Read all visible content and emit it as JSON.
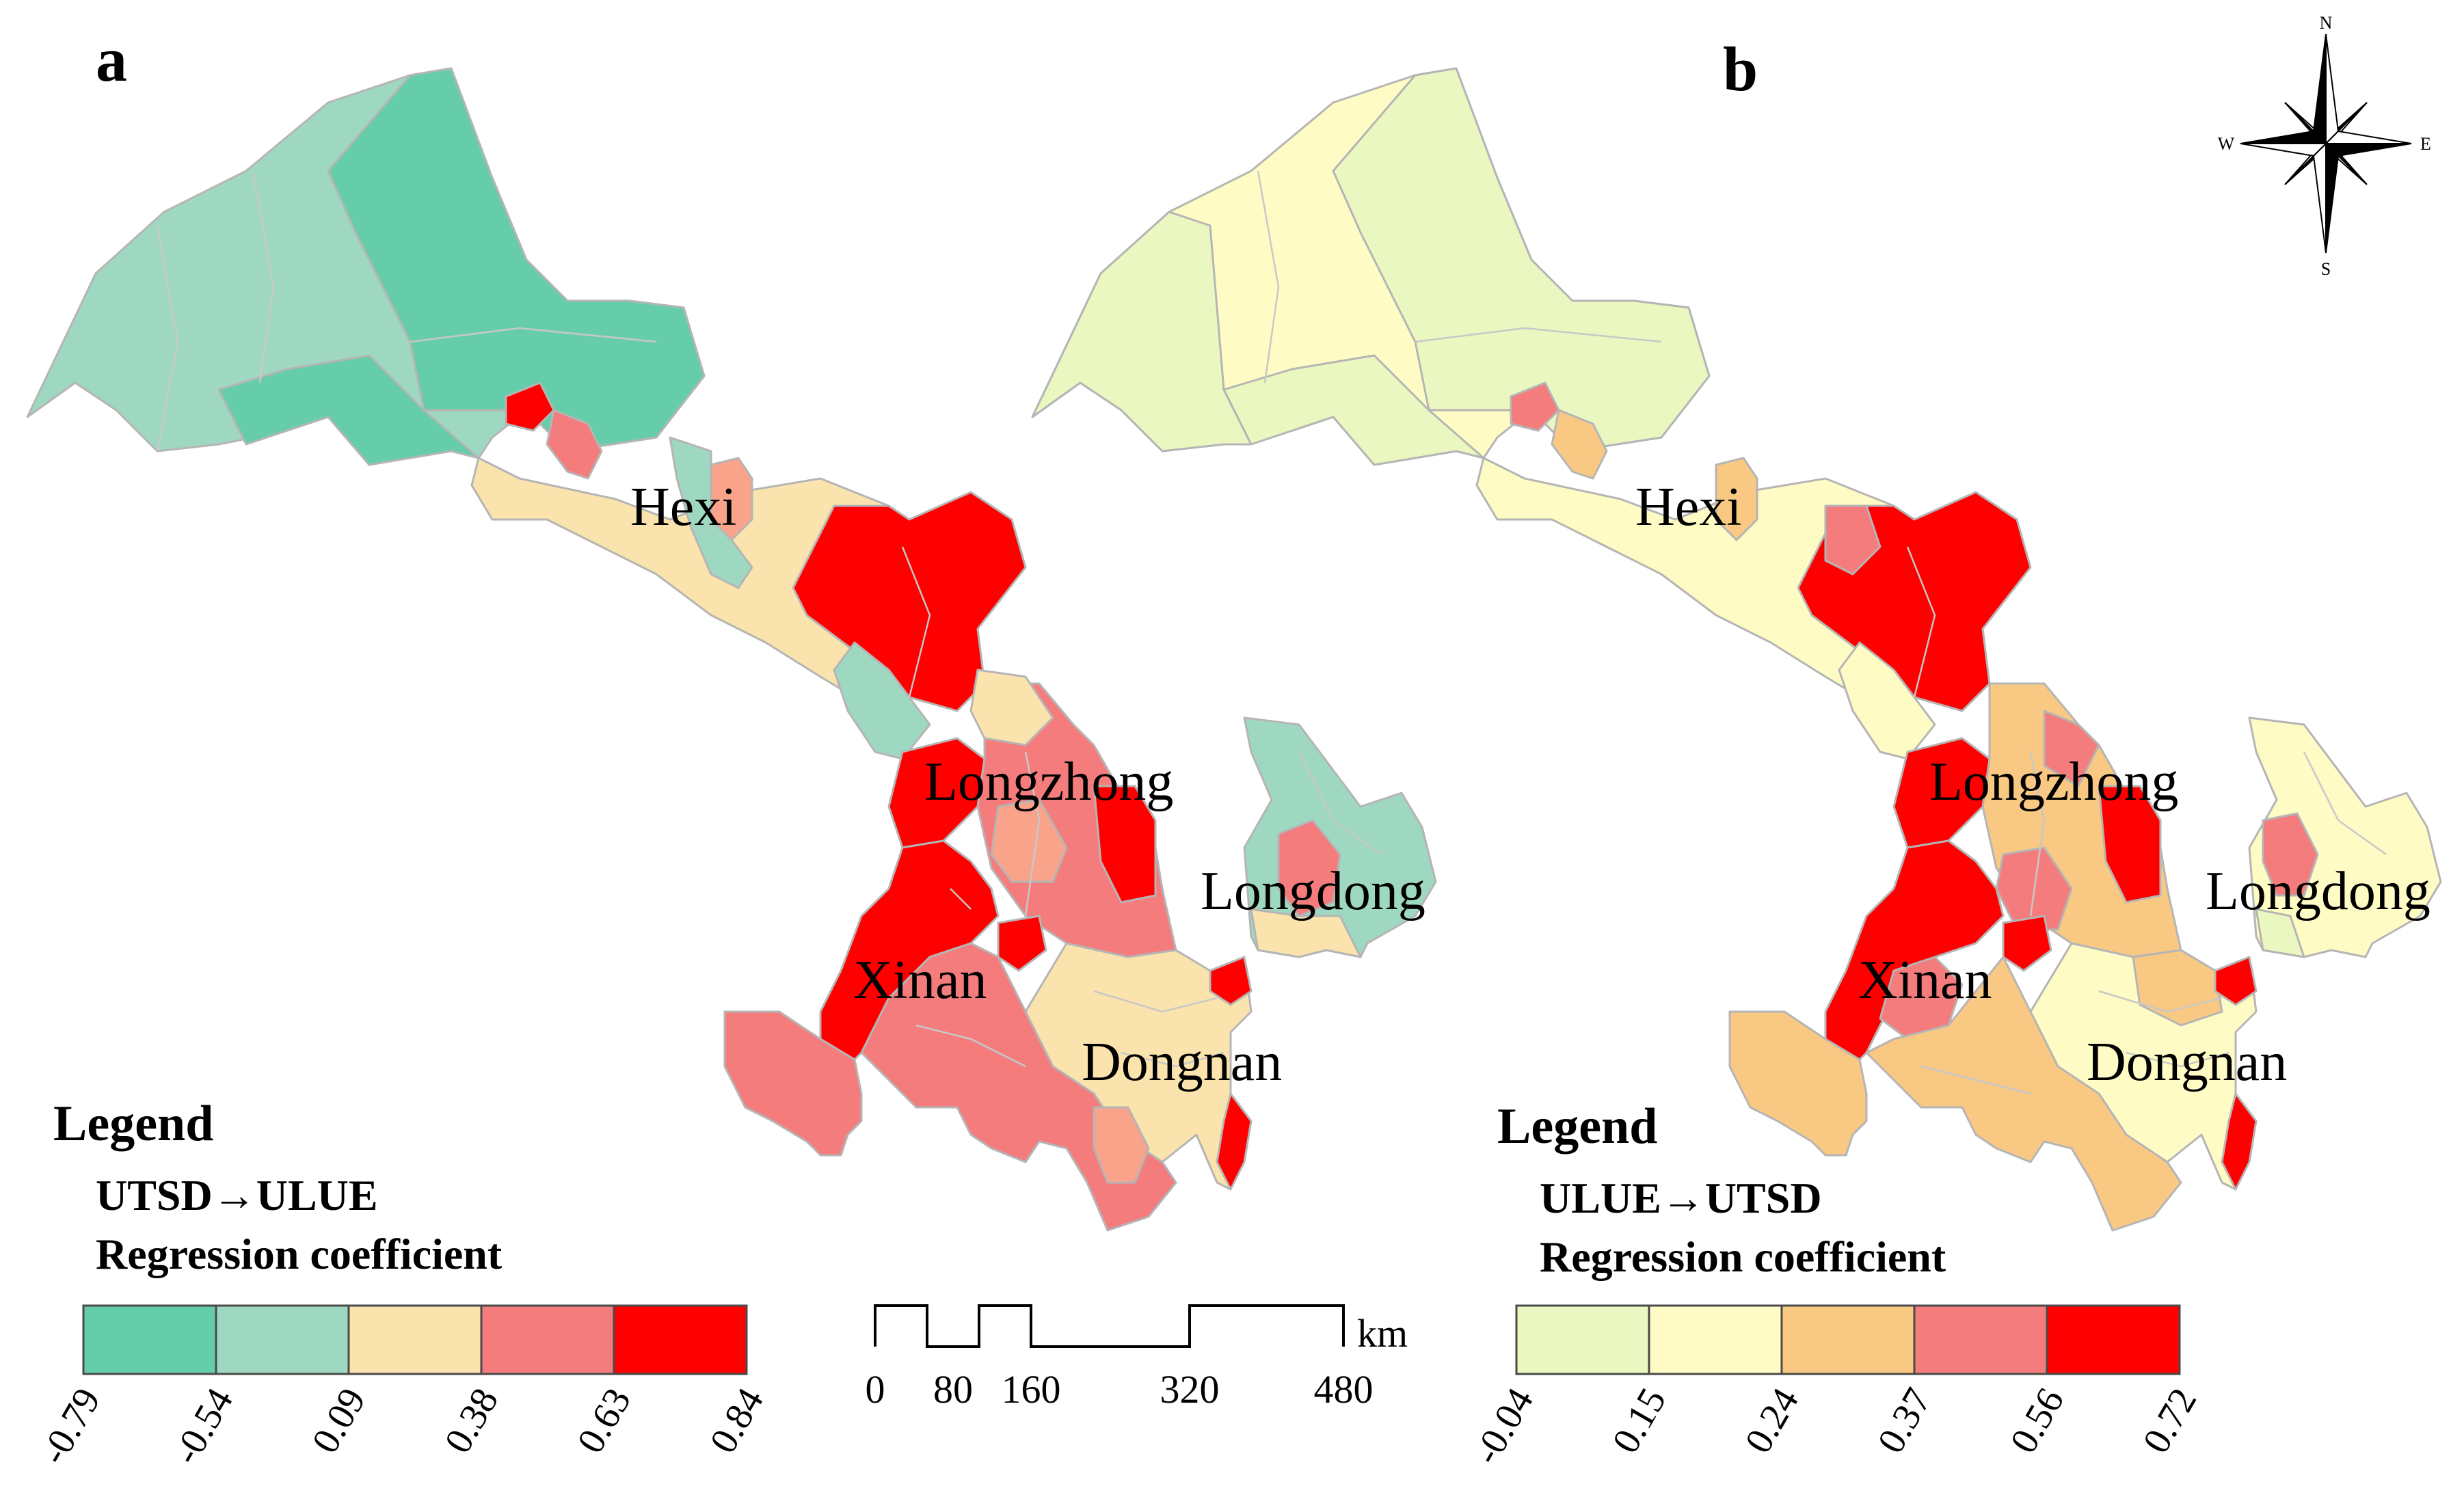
{
  "panels": [
    {
      "letter": "a",
      "region_labels": [
        "Hexi",
        "Longzhong",
        "Longdong",
        "Xinan",
        "Dongnan"
      ],
      "legend": {
        "title": "Legend",
        "line1": "UTSD→ULUE",
        "line2": "Regression coefficient",
        "colors": [
          "#66cdaa",
          "#9fd8c0",
          "#fbe3ad",
          "#f57c7c",
          "#ff0000"
        ],
        "breaks": [
          "-0.79",
          "-0.54",
          "0.09",
          "0.38",
          "0.63",
          "0.84"
        ]
      }
    },
    {
      "letter": "b",
      "region_labels": [
        "Hexi",
        "Longzhong",
        "Longdong",
        "Xinan",
        "Dongnan"
      ],
      "legend": {
        "title": "Legend",
        "line1": "ULUE→UTSD",
        "line2": "Regression coefficient",
        "colors": [
          "#eaf7c0",
          "#fefcc4",
          "#f9c983",
          "#f57c7c",
          "#ff0000"
        ],
        "breaks": [
          "-0.04",
          "0.15",
          "0.24",
          "0.37",
          "0.56",
          "0.72"
        ]
      }
    }
  ],
  "scale_bar": {
    "unit": "km",
    "ticks": [
      "0",
      "80",
      "160",
      "320",
      "480"
    ]
  },
  "compass": {
    "n": "N",
    "s": "S",
    "e": "E",
    "w": "W"
  }
}
